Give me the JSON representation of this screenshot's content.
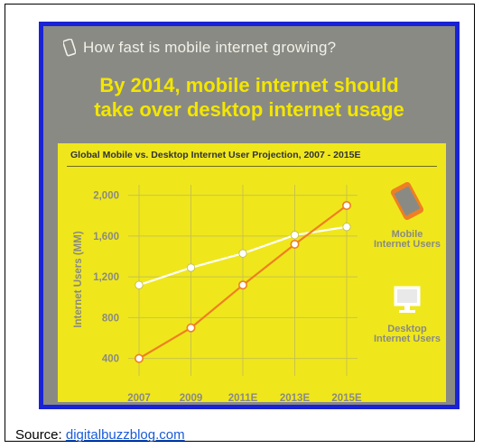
{
  "infographic": {
    "question": "How fast is mobile internet growing?",
    "question_icon": "phone-outline-icon",
    "headline_line1": "By 2014, mobile internet should",
    "headline_line2": "take over desktop internet usage"
  },
  "legend": {
    "mobile_label": "Mobile Internet Users",
    "desktop_label": "Desktop Internet Users",
    "mobile_icon": "smartphone-icon",
    "desktop_icon": "desktop-monitor-icon"
  },
  "source": {
    "label": "Source: ",
    "link_text": "digitalbuzzblog.com"
  },
  "colors": {
    "mobile_line": "#ef7f22",
    "desktop_line": "#ffffff",
    "panel_bg": "#efe71c",
    "headline": "#f3e600",
    "border": "#1a22d6"
  },
  "chart_data": {
    "type": "line",
    "title": "Global Mobile vs. Desktop Internet User Projection, 2007 - 2015E",
    "xlabel": "",
    "ylabel": "Internet Users (MM)",
    "categories": [
      "2007",
      "2009",
      "2011E",
      "2013E",
      "2015E"
    ],
    "yticks": [
      "400",
      "800",
      "1,200",
      "1,600",
      "2,000"
    ],
    "ylim": [
      300,
      2050
    ],
    "grid": true,
    "series": [
      {
        "name": "Mobile Internet Users",
        "values": [
          400,
          700,
          1120,
          1520,
          1900
        ]
      },
      {
        "name": "Desktop Internet Users",
        "values": [
          1120,
          1290,
          1430,
          1610,
          1690
        ]
      }
    ]
  }
}
